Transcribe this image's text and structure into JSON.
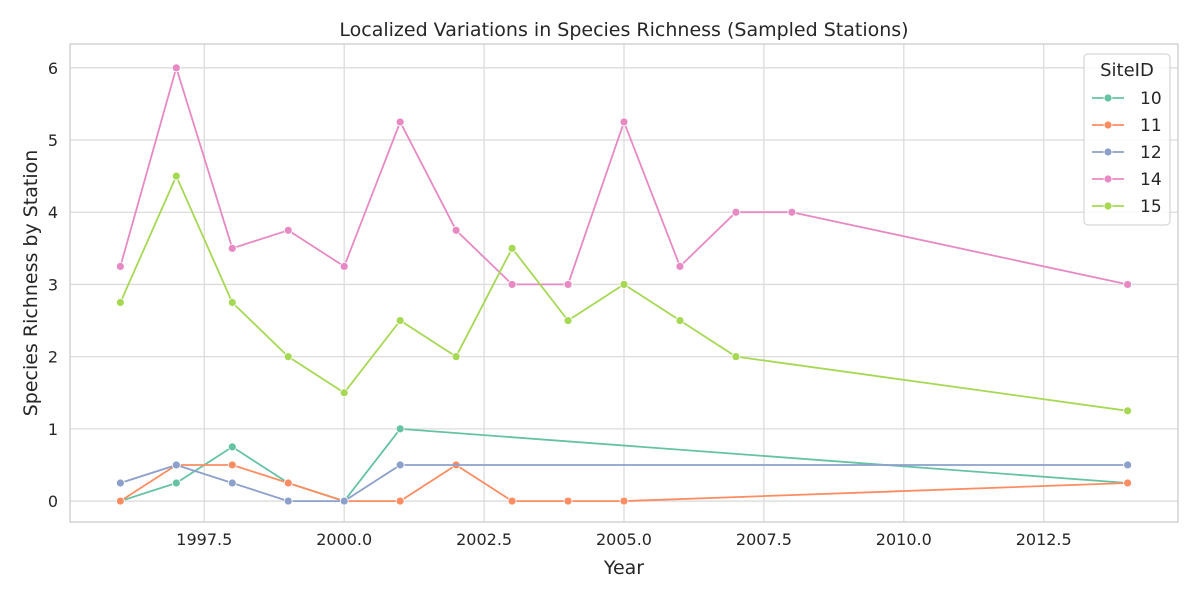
{
  "chart_data": {
    "type": "line",
    "title": "Localized Variations in Species Richness (Sampled Stations)",
    "xlabel": "Year",
    "ylabel": "Species Richness by Station",
    "xlim": [
      1995.1,
      2014.9
    ],
    "ylim": [
      -0.29,
      6.33
    ],
    "x_ticks": [
      1997.5,
      2000.0,
      2002.5,
      2005.0,
      2007.5,
      2010.0,
      2012.5
    ],
    "x_tick_labels": [
      "1997.5",
      "2000.0",
      "2002.5",
      "2005.0",
      "2007.5",
      "2010.0",
      "2012.5"
    ],
    "y_ticks": [
      0,
      1,
      2,
      3,
      4,
      5,
      6
    ],
    "y_tick_labels": [
      "0",
      "1",
      "2",
      "3",
      "4",
      "5",
      "6"
    ],
    "grid": true,
    "legend": {
      "title": "SiteID",
      "position": "top-right"
    },
    "series": [
      {
        "name": "10",
        "color": "#66c2a5",
        "x": [
          1996,
          1997,
          1998,
          1999,
          2000,
          2001,
          2014
        ],
        "y": [
          0,
          0.25,
          0.75,
          0.25,
          0,
          1.0,
          0.25
        ]
      },
      {
        "name": "11",
        "color": "#fc8d62",
        "x": [
          1996,
          1997,
          1998,
          1999,
          2000,
          2001,
          2002,
          2003,
          2004,
          2005,
          2014
        ],
        "y": [
          0,
          0.5,
          0.5,
          0.25,
          0,
          0,
          0.5,
          0,
          0,
          0,
          0.25
        ]
      },
      {
        "name": "12",
        "color": "#8da0cb",
        "x": [
          1996,
          1997,
          1998,
          1999,
          2000,
          2001,
          2014
        ],
        "y": [
          0.25,
          0.5,
          0.25,
          0,
          0,
          0.5,
          0.5
        ]
      },
      {
        "name": "14",
        "color": "#e78ac3",
        "x": [
          1996,
          1997,
          1998,
          1999,
          2000,
          2001,
          2002,
          2003,
          2004,
          2005,
          2006,
          2007,
          2008,
          2014
        ],
        "y": [
          3.25,
          6.0,
          3.5,
          3.75,
          3.25,
          5.25,
          3.75,
          3.0,
          3.0,
          5.25,
          3.25,
          4.0,
          4.0,
          3.0
        ]
      },
      {
        "name": "15",
        "color": "#a6d854",
        "x": [
          1996,
          1997,
          1998,
          1999,
          2000,
          2001,
          2002,
          2003,
          2004,
          2005,
          2006,
          2007,
          2014
        ],
        "y": [
          2.75,
          4.5,
          2.75,
          2.0,
          1.5,
          2.5,
          2.0,
          3.5,
          2.5,
          3.0,
          2.5,
          2.0,
          1.25
        ]
      }
    ]
  }
}
